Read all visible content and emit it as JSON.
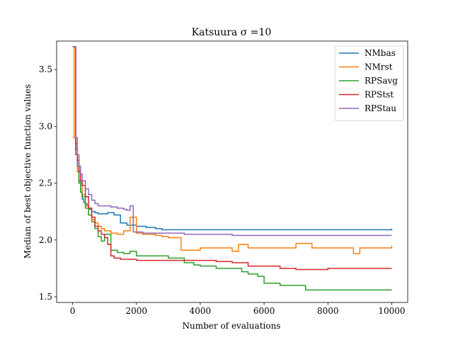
{
  "chart_data": {
    "type": "line",
    "title": "Katsuura σ =10",
    "xlabel": "Number of evaluations",
    "ylabel": "Median of best objective function values",
    "xlim": [
      -500,
      10500
    ],
    "ylim": [
      1.45,
      3.75
    ],
    "xticks": [
      0,
      2000,
      4000,
      6000,
      8000,
      10000
    ],
    "xtick_labels": [
      "0",
      "2000",
      "4000",
      "6000",
      "8000",
      "10000"
    ],
    "yticks": [
      1.5,
      2.0,
      2.5,
      3.0,
      3.5
    ],
    "ytick_labels": [
      "1.5",
      "2.0",
      "2.5",
      "3.0",
      "3.5"
    ],
    "grid": false,
    "legend_position": "top-right",
    "series": [
      {
        "name": "NMbas",
        "color": "#1f77b4",
        "x": [
          0,
          60,
          100,
          150,
          200,
          250,
          300,
          350,
          400,
          450,
          500,
          600,
          700,
          800,
          900,
          1000,
          1100,
          1300,
          1500,
          1700,
          1800,
          2000,
          2300,
          2600,
          2800,
          3000,
          4000,
          5000,
          6000,
          7000,
          8000,
          9000,
          9800,
          10000
        ],
        "y": [
          3.7,
          3.7,
          2.8,
          2.65,
          2.52,
          2.42,
          2.36,
          2.33,
          2.32,
          2.3,
          2.27,
          2.25,
          2.24,
          2.23,
          2.23,
          2.23,
          2.24,
          2.22,
          2.15,
          2.13,
          2.13,
          2.12,
          2.11,
          2.1,
          2.09,
          2.09,
          2.09,
          2.09,
          2.09,
          2.09,
          2.09,
          2.09,
          2.09,
          2.1
        ]
      },
      {
        "name": "NMrst",
        "color": "#ff7f0e",
        "x": [
          0,
          50,
          100,
          150,
          200,
          300,
          400,
          500,
          600,
          700,
          800,
          900,
          1000,
          1200,
          1400,
          1600,
          1800,
          2000,
          2200,
          2400,
          2600,
          2800,
          3000,
          3200,
          3400,
          3600,
          4000,
          4500,
          5000,
          5200,
          5500,
          6000,
          6500,
          7000,
          7500,
          8000,
          8500,
          8800,
          9000,
          9500,
          10000
        ],
        "y": [
          2.9,
          3.7,
          2.85,
          2.6,
          2.5,
          2.4,
          2.3,
          2.22,
          2.18,
          2.15,
          2.12,
          2.1,
          2.08,
          2.06,
          2.05,
          2.08,
          2.2,
          2.06,
          2.05,
          2.05,
          2.04,
          2.03,
          2.02,
          2.02,
          1.91,
          1.91,
          1.93,
          1.93,
          1.9,
          1.96,
          1.93,
          1.93,
          1.93,
          1.97,
          1.93,
          1.93,
          1.93,
          1.88,
          1.93,
          1.93,
          1.95
        ]
      },
      {
        "name": "RPSavg",
        "color": "#2ca02c",
        "x": [
          0,
          50,
          100,
          150,
          200,
          250,
          300,
          400,
          500,
          600,
          700,
          800,
          900,
          1000,
          1200,
          1400,
          1600,
          1800,
          2000,
          2500,
          3000,
          3500,
          3800,
          4000,
          4500,
          5000,
          5300,
          5500,
          5800,
          6000,
          6500,
          7000,
          7300,
          8000,
          9000,
          10000
        ],
        "y": [
          3.7,
          3.7,
          2.8,
          2.65,
          2.5,
          2.42,
          2.38,
          2.28,
          2.22,
          2.16,
          2.1,
          2.03,
          1.99,
          2.05,
          1.91,
          1.89,
          1.88,
          1.9,
          1.86,
          1.86,
          1.84,
          1.8,
          1.78,
          1.77,
          1.75,
          1.75,
          1.72,
          1.7,
          1.68,
          1.62,
          1.6,
          1.6,
          1.56,
          1.56,
          1.56,
          1.56
        ]
      },
      {
        "name": "RPStst",
        "color": "#d62728",
        "x": [
          0,
          50,
          100,
          150,
          200,
          250,
          300,
          400,
          500,
          600,
          700,
          800,
          900,
          1000,
          1100,
          1200,
          1300,
          1500,
          2000,
          2500,
          3000,
          3500,
          4000,
          4500,
          5000,
          5500,
          6000,
          6500,
          7000,
          8000,
          9000,
          10000
        ],
        "y": [
          3.7,
          3.7,
          2.75,
          2.7,
          2.6,
          2.52,
          2.48,
          2.38,
          2.28,
          2.2,
          2.12,
          2.08,
          2.05,
          2.02,
          1.96,
          1.86,
          1.84,
          1.83,
          1.82,
          1.82,
          1.82,
          1.82,
          1.82,
          1.81,
          1.8,
          1.77,
          1.77,
          1.75,
          1.74,
          1.75,
          1.75,
          1.75
        ]
      },
      {
        "name": "RPStau",
        "color": "#9467bd",
        "x": [
          0,
          50,
          100,
          150,
          200,
          250,
          300,
          400,
          500,
          600,
          700,
          800,
          1000,
          1200,
          1400,
          1600,
          1700,
          1800,
          1900,
          2000,
          2200,
          2500,
          3000,
          3500,
          4000,
          5000,
          6000,
          7000,
          8000,
          9000,
          10000
        ],
        "y": [
          3.7,
          3.7,
          2.9,
          2.75,
          2.65,
          2.58,
          2.52,
          2.45,
          2.4,
          2.35,
          2.32,
          2.3,
          2.3,
          2.29,
          2.28,
          2.27,
          2.26,
          2.3,
          2.07,
          2.07,
          2.06,
          2.06,
          2.06,
          2.05,
          2.05,
          2.04,
          2.04,
          2.04,
          2.04,
          2.04,
          2.04
        ]
      }
    ]
  }
}
